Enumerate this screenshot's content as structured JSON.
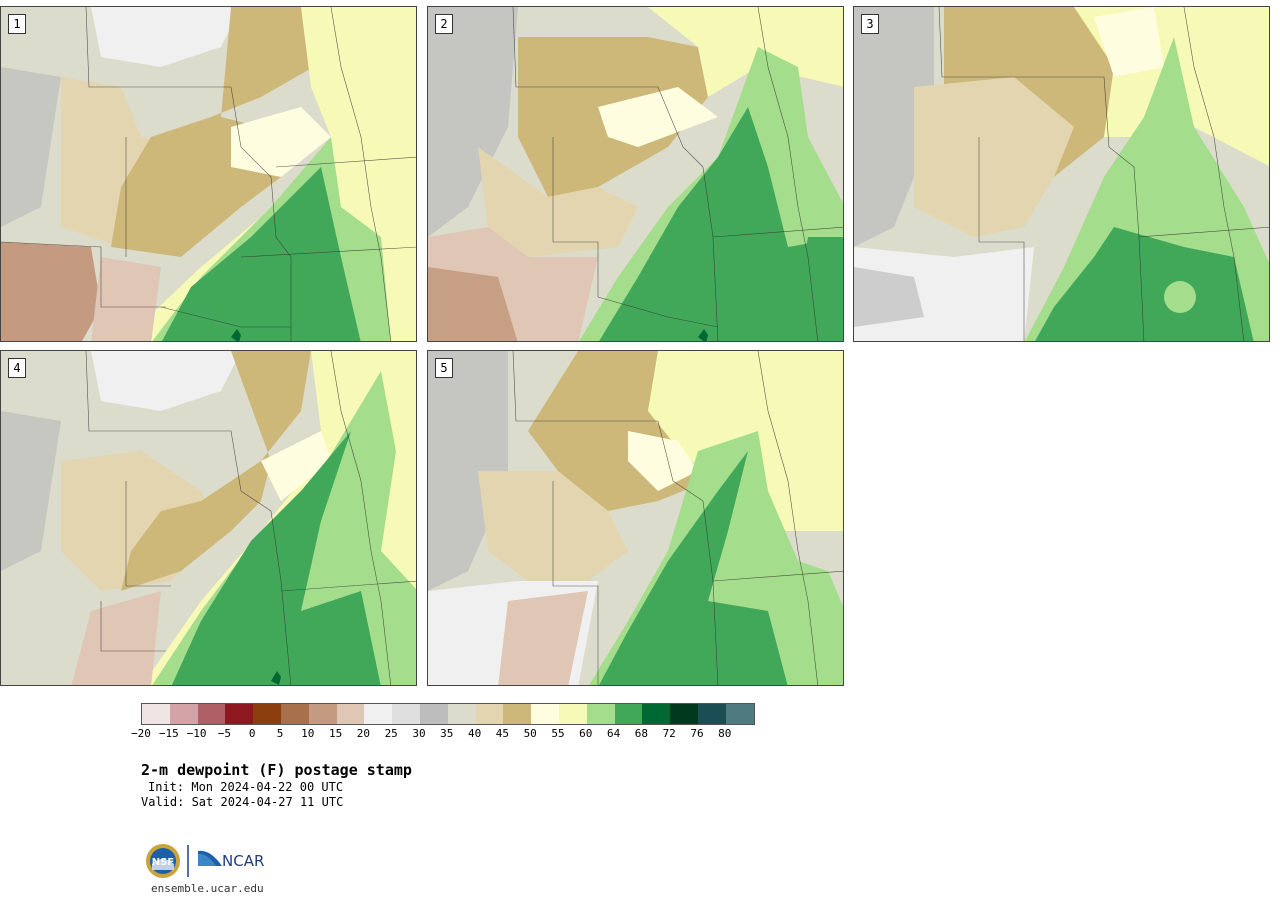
{
  "panels": [
    {
      "label": "1"
    },
    {
      "label": "2"
    },
    {
      "label": "3"
    },
    {
      "label": "4"
    },
    {
      "label": "5"
    }
  ],
  "colorbar": {
    "colors": [
      "#f1e4e4",
      "#d4a3a8",
      "#b05f66",
      "#8e1820",
      "#8b3f0e",
      "#a8714b",
      "#c49a80",
      "#e0c6b5",
      "#f0f0f0",
      "#dedede",
      "#bdbdbd",
      "#dcdccc",
      "#e2d5b0",
      "#cdb87a",
      "#fefde0",
      "#f7fab7",
      "#a4dd8c",
      "#41a85a",
      "#006833",
      "#00391d",
      "#1b4d55",
      "#4f7a80"
    ],
    "tick_labels": [
      "−20",
      "−15",
      "−10",
      "−5",
      "0",
      "5",
      "10",
      "15",
      "20",
      "25",
      "30",
      "35",
      "40",
      "45",
      "50",
      "55",
      "60",
      "64",
      "68",
      "72",
      "76",
      "80"
    ]
  },
  "title": "2-m dewpoint (F) postage stamp",
  "init": "Init: Mon 2024-04-22 00 UTC",
  "valid": "Valid: Sat 2024-04-27 11 UTC",
  "logos": {
    "nsf": "NSF",
    "ncar": "NCAR"
  },
  "url": "ensemble.ucar.edu"
}
